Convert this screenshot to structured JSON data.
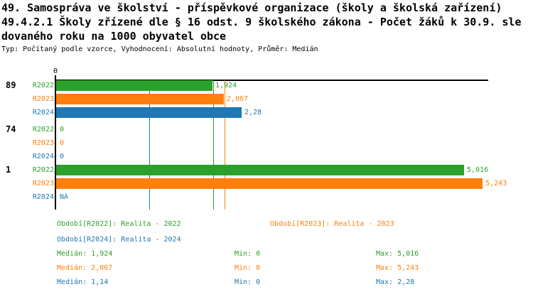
{
  "header": {
    "title_line1": "49. Samospráva ve školství - příspěvkové organizace (školy a školská zařízení)",
    "title_line2": "49.4.2.1 Školy zřízené dle § 16 odst. 9 školského zákona - Počet žáků k 30.9. sle",
    "title_line3": "dovaného roku na 1000 obyvatel obce",
    "subtitle": "Typ: Počítaný podle vzorce, Vyhodnocení: Absolutní hodnoty, Průměr: Medián"
  },
  "colors": {
    "r2022": "#2ca02c",
    "r2023": "#ff7f0e",
    "r2024": "#1f77b4",
    "axis": "#000000",
    "background": "#ffffff"
  },
  "chart_data": {
    "type": "bar",
    "orientation": "horizontal",
    "title": "49.4.2.1 Školy zřízené dle § 16 odst. 9 školského zákona - Počet žáků k 30.9. sledovaného roku na 1000 obyvatel obce",
    "x_axis": {
      "tick_label": "0",
      "origin_value": 0
    },
    "xlim": [
      0,
      5.32
    ],
    "groups": [
      "89",
      "74",
      "1"
    ],
    "series_names": [
      "R2022",
      "R2023",
      "R2024"
    ],
    "rows": [
      {
        "group": "89",
        "series": "R2022",
        "value": 1.924,
        "label": "1,924"
      },
      {
        "group": "89",
        "series": "R2023",
        "value": 2.067,
        "label": "2,067"
      },
      {
        "group": "89",
        "series": "R2024",
        "value": 2.28,
        "label": "2,28"
      },
      {
        "group": "74",
        "series": "R2022",
        "value": 0,
        "label": "0"
      },
      {
        "group": "74",
        "series": "R2023",
        "value": 0,
        "label": "0"
      },
      {
        "group": "74",
        "series": "R2024",
        "value": 0,
        "label": "0"
      },
      {
        "group": "1",
        "series": "R2022",
        "value": 5.016,
        "label": "5,016"
      },
      {
        "group": "1",
        "series": "R2023",
        "value": 5.243,
        "label": "5,243"
      },
      {
        "group": "1",
        "series": "R2024",
        "value": null,
        "label": "NA"
      }
    ],
    "medians": [
      {
        "series": "R2022",
        "value": 1.924
      },
      {
        "series": "R2023",
        "value": 2.067
      },
      {
        "series": "R2024",
        "value": 1.14
      }
    ]
  },
  "legend": {
    "items": [
      {
        "series": "R2022",
        "label": "Období[R2022]: Realita - 2022"
      },
      {
        "series": "R2023",
        "label": "Období[R2023]: Realita - 2023"
      },
      {
        "series": "R2024",
        "label": "Období[R2024]: Realita - 2024"
      }
    ]
  },
  "stats": {
    "rows": [
      {
        "series": "R2022",
        "median": "Medián: 1,924",
        "min": "Min: 0",
        "max": "Max: 5,016"
      },
      {
        "series": "R2023",
        "median": "Medián: 2,067",
        "min": "Min: 0",
        "max": "Max: 5,243"
      },
      {
        "series": "R2024",
        "median": "Medián: 1,14",
        "min": "Min: 0",
        "max": "Max: 2,28"
      }
    ]
  }
}
